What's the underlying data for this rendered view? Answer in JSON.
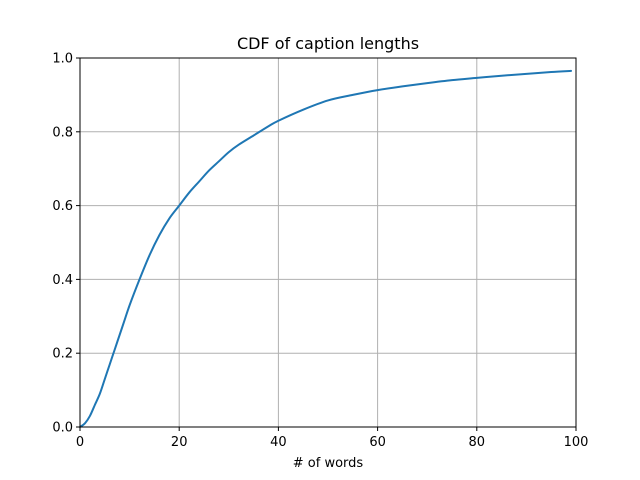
{
  "chart_data": {
    "type": "line",
    "title": "CDF of caption lengths",
    "xlabel": "# of words",
    "ylabel": "",
    "xlim": [
      0,
      100
    ],
    "ylim": [
      0.0,
      1.0
    ],
    "x_ticks": [
      0,
      20,
      40,
      60,
      80,
      100
    ],
    "x_tick_labels": [
      "0",
      "20",
      "40",
      "60",
      "80",
      "100"
    ],
    "y_ticks": [
      0.0,
      0.2,
      0.4,
      0.6,
      0.8,
      1.0
    ],
    "y_tick_labels": [
      "0.0",
      "0.2",
      "0.4",
      "0.6",
      "0.8",
      "1.0"
    ],
    "grid": true,
    "series": [
      {
        "color": "#1f77b4",
        "x": [
          0,
          1,
          2,
          3,
          4,
          5,
          6,
          7,
          8,
          9,
          10,
          12,
          14,
          16,
          18,
          20,
          22,
          24,
          26,
          28,
          30,
          32,
          35,
          38,
          40,
          45,
          50,
          55,
          60,
          65,
          70,
          75,
          80,
          85,
          90,
          95,
          99
        ],
        "y": [
          0.0,
          0.01,
          0.03,
          0.06,
          0.09,
          0.13,
          0.17,
          0.21,
          0.25,
          0.29,
          0.33,
          0.4,
          0.465,
          0.52,
          0.565,
          0.6,
          0.635,
          0.665,
          0.695,
          0.72,
          0.745,
          0.765,
          0.79,
          0.815,
          0.83,
          0.86,
          0.885,
          0.9,
          0.913,
          0.923,
          0.932,
          0.94,
          0.946,
          0.952,
          0.957,
          0.962,
          0.965
        ]
      }
    ]
  }
}
